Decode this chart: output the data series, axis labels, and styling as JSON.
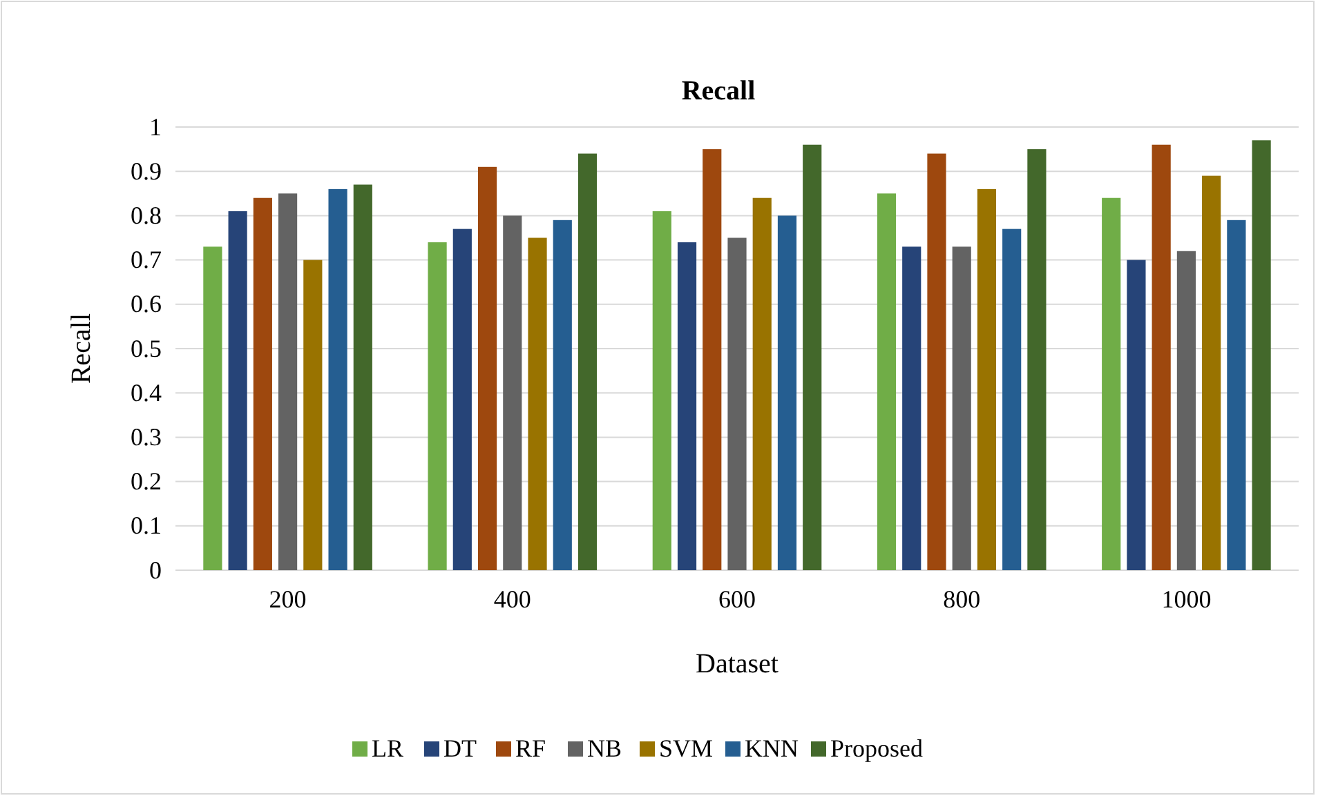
{
  "chart_data": {
    "type": "bar",
    "title": "Recall",
    "xlabel": "Dataset",
    "ylabel": "Recall",
    "categories": [
      "200",
      "400",
      "600",
      "800",
      "1000"
    ],
    "series": [
      {
        "name": "LR",
        "color": "#70ad47",
        "values": [
          0.73,
          0.74,
          0.81,
          0.85,
          0.84
        ]
      },
      {
        "name": "DT",
        "color": "#264478",
        "values": [
          0.81,
          0.77,
          0.74,
          0.73,
          0.7
        ]
      },
      {
        "name": "RF",
        "color": "#9e480e",
        "values": [
          0.84,
          0.91,
          0.95,
          0.94,
          0.96
        ]
      },
      {
        "name": "NB",
        "color": "#636363",
        "values": [
          0.85,
          0.8,
          0.75,
          0.73,
          0.72
        ]
      },
      {
        "name": "SVM",
        "color": "#997300",
        "values": [
          0.7,
          0.75,
          0.84,
          0.86,
          0.89
        ]
      },
      {
        "name": "KNN",
        "color": "#255e91",
        "values": [
          0.86,
          0.79,
          0.8,
          0.77,
          0.79
        ]
      },
      {
        "name": "Proposed",
        "color": "#43682b",
        "values": [
          0.87,
          0.94,
          0.96,
          0.95,
          0.97
        ]
      }
    ],
    "ylim": [
      0,
      1
    ],
    "yticks": [
      0,
      0.1,
      0.2,
      0.3,
      0.4,
      0.5,
      0.6,
      0.7,
      0.8,
      0.9,
      1
    ],
    "grid": "y",
    "legend": "bottom"
  }
}
